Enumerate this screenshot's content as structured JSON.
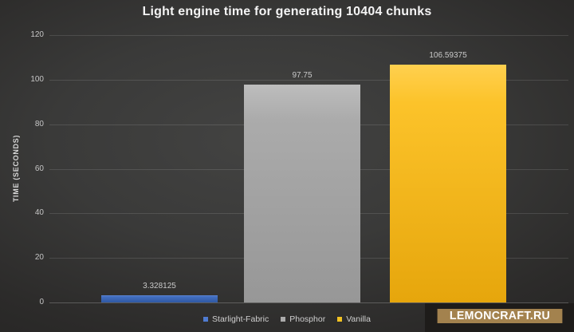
{
  "chart_data": {
    "type": "bar",
    "title": "Light engine time for generating 10404 chunks",
    "ylabel": "TIME (SECONDS)",
    "xlabel": "",
    "ylim": [
      0,
      120
    ],
    "yticks": [
      0,
      20,
      40,
      60,
      80,
      100,
      120
    ],
    "grid": true,
    "legend_position": "bottom",
    "background": "dark-gray-vignette",
    "categories": [
      "Starlight-Fabric",
      "Phosphor",
      "Vanilla"
    ],
    "series": [
      {
        "name": "Starlight-Fabric",
        "value": 3.328125,
        "label": "3.328125",
        "color": "#4470c2",
        "color_top": "#6189d4",
        "color_bottom": "#2f58a3",
        "legend_color": "#4f7bd0"
      },
      {
        "name": "Phosphor",
        "value": 97.75,
        "label": "97.75",
        "color": "#ababab",
        "color_top": "#bdbdbd",
        "color_bottom": "#979797",
        "legend_color": "#ababab"
      },
      {
        "name": "Vanilla",
        "value": 106.59375,
        "label": "106.59375",
        "color": "#fcc32a",
        "color_top": "#ffd04f",
        "color_bottom": "#e6a60c",
        "legend_color": "#f2c222"
      }
    ]
  },
  "watermark": {
    "text": "LEMONCRAFT.RU",
    "band_color": "#a3824e",
    "box_color": "#1e1c1a"
  }
}
